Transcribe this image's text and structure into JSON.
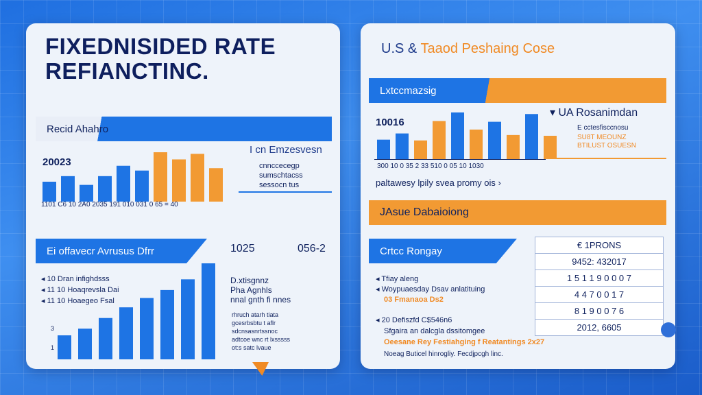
{
  "colors": {
    "blue": "#1e74e4",
    "orange": "#f29a33",
    "navy": "#10225e"
  },
  "left": {
    "title_line1": "FIXEDNISIDED RATE",
    "title_line2": "REFIANCTINC.",
    "band1": "Recid Ahahro",
    "chart1_label": "20023",
    "side1_title": "I cn Emzesvesn",
    "side1_lines": [
      "cnnccecegp",
      "sumschtacss",
      "sessocn tus"
    ],
    "ticks1": "1101  C6    10  2A0  2035   191   010   031   0 65  = 40",
    "band2": "Ei offavecr Avrusus Dfrr",
    "band2_val1": "1025",
    "band2_val2": "056-2",
    "legend_items": [
      "10  Dran infighdsss",
      "11 10  Hoaqrevsla Dai",
      "11 10 Hoaegeo Fsal"
    ],
    "side2_title": [
      "D.xtisgnnz",
      "Pha Agnhls",
      "nnal gnth fi nnes"
    ],
    "side2_lines": [
      "rhruch atarh tiata",
      "gcesrbsbtu t aflr",
      "sdcnsasnrtssnoc",
      "adtcoe wnc rt lxsssss",
      "ot:s satc lvaue"
    ]
  },
  "right": {
    "title_part1": "U.S &",
    "title_part2": "Taaod Peshaing Cose",
    "band1": "Lxtccmazsig",
    "chart_value": "10016",
    "ticks": "300    10  0 35  2 33  510  0 05   10  1030",
    "side_title": "UA Rosanimdan",
    "side_lines": [
      "E cctesfisccnosu",
      "SU8T MEOUNZ",
      "BTILUST OSUESN"
    ],
    "caption": "paltawesy lpily  svea promy ois",
    "band2": "JAsue Dabaioiong",
    "band3": "Crtcc Rongay",
    "list_items": [
      "Tfiay aleng",
      "Woypuaesday Dsav anlatituing",
      "03 Fmanaoa Ds2"
    ],
    "table_rows": [
      "€ 1PRONS",
      "9452: 432017",
      "1 5 1 1 9 0 0 0 7",
      "4 4 7 0 0 1 7",
      "8 1 9 0 0 7 6",
      "2012, 6605"
    ],
    "bottom_lines": [
      "20  Defiszfd C$546n6",
      "Sfgaira an dalcgla dssitomgee",
      "Oeesane Rey Festiahging f Reatantings 2x27",
      "Noeag Buticel hinrogliy. Fecdjpcgh linc."
    ]
  },
  "chart_data": [
    {
      "type": "bar",
      "values": [
        25,
        32,
        21,
        32,
        45,
        39,
        62,
        53,
        60,
        42
      ],
      "series_colors": [
        "blue",
        "blue",
        "blue",
        "blue",
        "blue",
        "blue",
        "orange",
        "orange",
        "orange",
        "orange"
      ]
    },
    {
      "type": "bar",
      "values": [
        25,
        33,
        24,
        49,
        60,
        38,
        48,
        31,
        58,
        30
      ],
      "series_colors": [
        "blue",
        "blue",
        "orange",
        "orange",
        "blue",
        "orange",
        "blue",
        "orange",
        "blue",
        "orange"
      ]
    },
    {
      "type": "bar",
      "values": [
        18,
        23,
        31,
        39,
        46,
        52,
        60,
        72
      ],
      "series_colors": [
        "blue",
        "blue",
        "blue",
        "blue",
        "blue",
        "blue",
        "blue",
        "blue"
      ]
    }
  ]
}
